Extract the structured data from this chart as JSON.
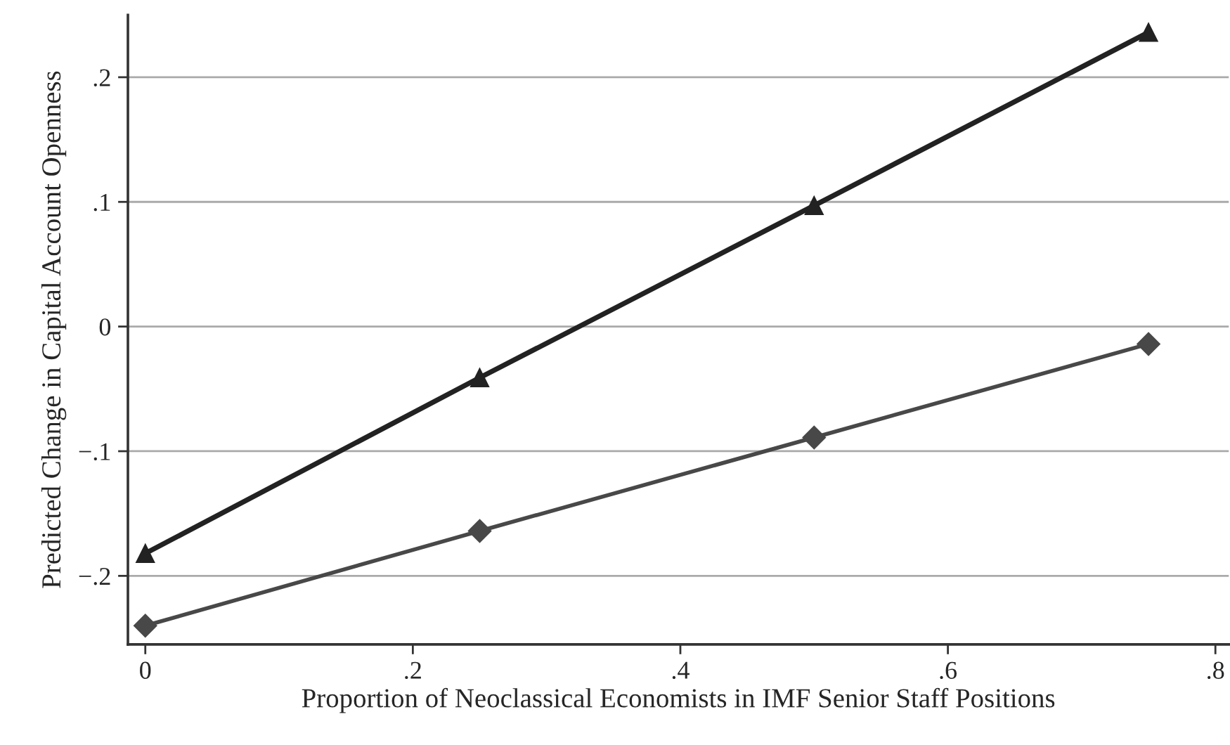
{
  "chart_data": {
    "type": "line",
    "xlabel": "Proportion of Neoclassical Economists in IMF Senior Staff Positions",
    "ylabel": "Predicted Change in Capital Account Openness",
    "x": [
      0,
      0.25,
      0.5,
      0.75
    ],
    "series": [
      {
        "color": "#222222",
        "marker": "triangle",
        "values": [
          -0.182,
          -0.041,
          0.097,
          0.236
        ]
      },
      {
        "color": "#484848",
        "marker": "diamond",
        "values": [
          -0.24,
          -0.164,
          -0.089,
          -0.014
        ]
      }
    ],
    "xlim": [
      -0.013,
      0.81
    ],
    "xticks": [
      0,
      {
        "value": 0.2,
        "label": ".2"
      },
      {
        "value": 0.4,
        "label": ".4"
      },
      {
        "value": 0.6,
        "label": ".6"
      },
      {
        "value": 0.8,
        "label": ".8"
      }
    ],
    "ylim": [
      -0.255,
      0.25
    ],
    "yticks": [
      {
        "value": -0.2,
        "label": "−.2"
      },
      {
        "value": -0.1,
        "label": "−.1"
      },
      0,
      {
        "value": 0.1,
        "label": ".1"
      },
      {
        "value": 0.2,
        "label": ".2"
      }
    ],
    "grid": "y",
    "line_style": "solid"
  }
}
